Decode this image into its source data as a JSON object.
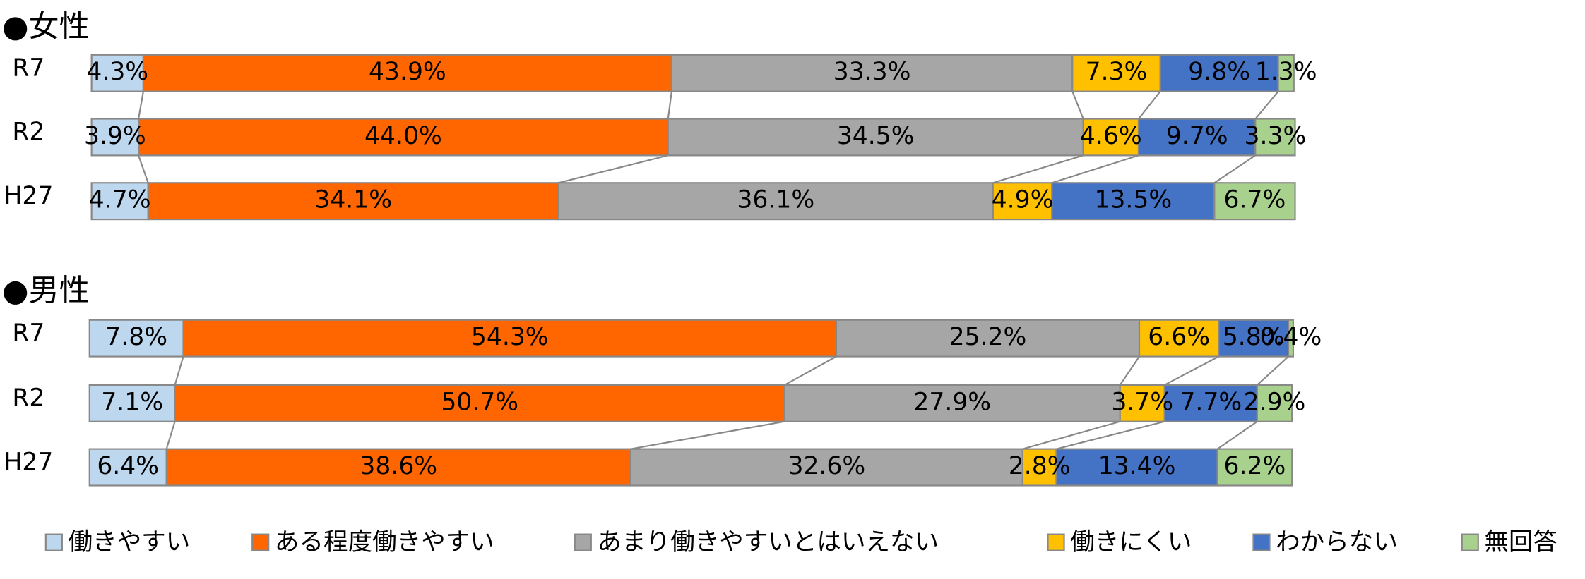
{
  "chart_data": [
    {
      "type": "bar",
      "orientation": "horizontal",
      "stacked": true,
      "title": "●女性",
      "categories": [
        "R7",
        "R2",
        "H27"
      ],
      "xlim": [
        0,
        100
      ],
      "series": [
        {
          "color": "#bdd7ee",
          "values": [
            4.3,
            3.9,
            4.7
          ],
          "value_labels": [
            "4.3%",
            "3.9%",
            "4.7%"
          ]
        },
        {
          "color": "#ff6600",
          "values": [
            43.9,
            44.0,
            34.1
          ],
          "value_labels": [
            "43.9%",
            "44.0%",
            "34.1%"
          ]
        },
        {
          "color": "#a6a6a6",
          "values": [
            33.3,
            34.5,
            36.1
          ],
          "value_labels": [
            "33.3%",
            "34.5%",
            "36.1%"
          ]
        },
        {
          "color": "#ffc000",
          "values": [
            7.3,
            4.6,
            4.9
          ],
          "value_labels": [
            "7.3%",
            "4.6%",
            "4.9%"
          ]
        },
        {
          "color": "#4472c4",
          "values": [
            9.8,
            9.7,
            13.5
          ],
          "value_labels": [
            "9.8%",
            "9.7%",
            "13.5%"
          ]
        },
        {
          "color": "#a9d18e",
          "values": [
            1.3,
            3.3,
            6.7
          ],
          "value_labels": [
            "1.3%",
            "3.3%",
            "6.7%"
          ]
        }
      ]
    },
    {
      "type": "bar",
      "orientation": "horizontal",
      "stacked": true,
      "title": "●男性",
      "categories": [
        "R7",
        "R2",
        "H27"
      ],
      "xlim": [
        0,
        100
      ],
      "series": [
        {
          "name": "働きやすい",
          "color": "#bdd7ee",
          "values": [
            7.8,
            7.1,
            6.4
          ],
          "value_labels": [
            "7.8%",
            "7.1%",
            "6.4%"
          ]
        },
        {
          "name": "ある程度働きやすい",
          "color": "#ff6600",
          "values": [
            54.3,
            50.7,
            38.6
          ],
          "value_labels": [
            "54.3%",
            "50.7%",
            "38.6%"
          ]
        },
        {
          "name": "あまり働きやすいとはいえない",
          "color": "#a6a6a6",
          "values": [
            25.2,
            27.9,
            32.6
          ],
          "value_labels": [
            "25.2%",
            "27.9%",
            "32.6%"
          ]
        },
        {
          "name": "働きにくい",
          "color": "#ffc000",
          "values": [
            6.6,
            3.7,
            2.8
          ],
          "value_labels": [
            "6.6%",
            "3.7%",
            "2.8%"
          ]
        },
        {
          "name": "わからない",
          "color": "#4472c4",
          "values": [
            5.8,
            7.7,
            13.4
          ],
          "value_labels": [
            "5.8%",
            "7.7%",
            "13.4%"
          ]
        },
        {
          "name": "無回答",
          "color": "#a9d18e",
          "values": [
            0.4,
            2.9,
            6.2
          ],
          "value_labels": [
            "0.4%",
            "2.9%",
            "6.2%"
          ]
        }
      ]
    }
  ]
}
